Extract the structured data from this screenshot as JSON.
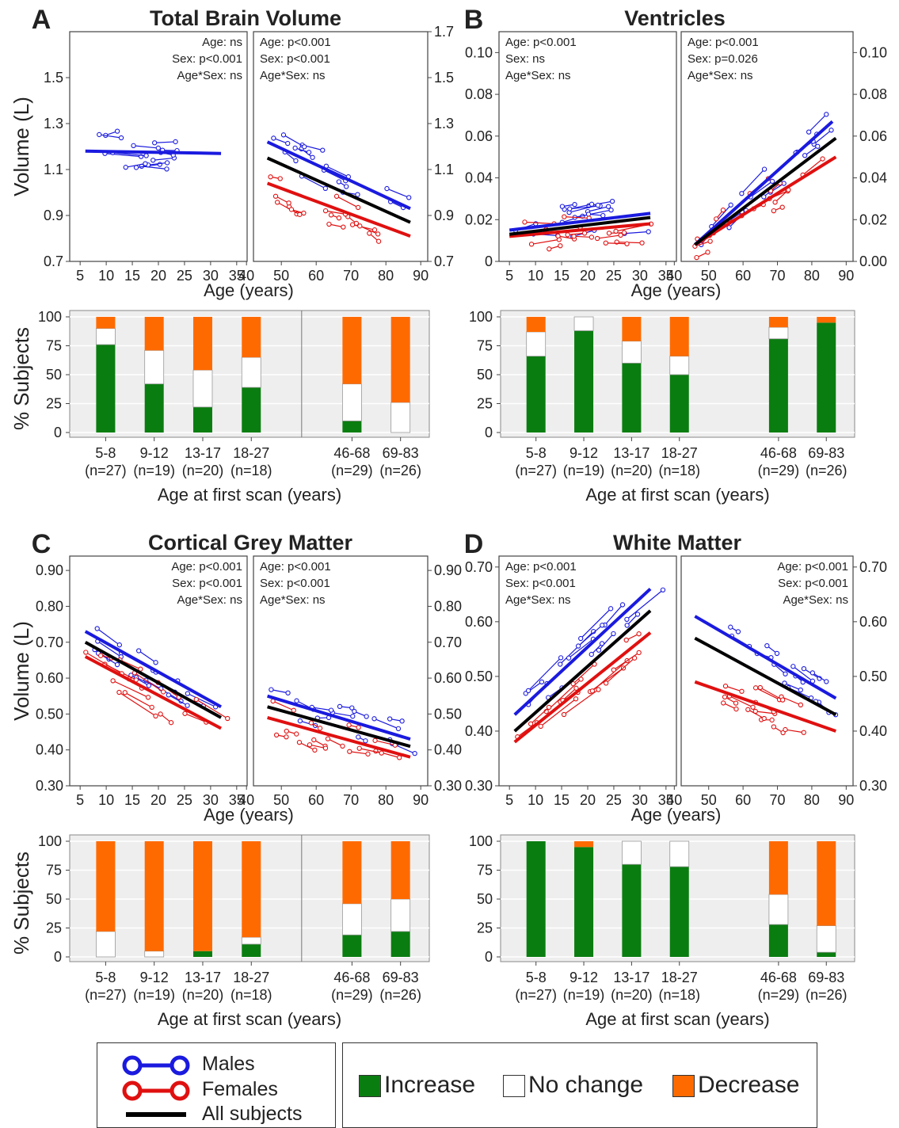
{
  "colors": {
    "male": "#1a1adf",
    "female": "#e01010",
    "all": "#000000",
    "increase": "#0a7d10",
    "nochange": "#ffffff",
    "decrease": "#ff6a00",
    "panel_bg": "#eeeeee"
  },
  "legend_lines": {
    "males": "Males",
    "females": "Females",
    "all": "All subjects"
  },
  "legend_bars": {
    "increase": "Increase",
    "nochange": "No change",
    "decrease": "Decrease"
  },
  "chart_data": [
    {
      "panel": "A",
      "title": "Total Brain Volume",
      "type": "line",
      "ylabel": "Volume (L)",
      "xlabel": "Age (years)",
      "left": {
        "xlim": [
          3,
          37
        ],
        "ylim": [
          0.7,
          1.7
        ],
        "xticks": [
          "5",
          "10",
          "15",
          "20",
          "25",
          "30",
          "35"
        ],
        "yticks": [
          "0.7",
          "0.9",
          "1.1",
          "1.3",
          "1.5"
        ],
        "stats": [
          "Age: ns",
          "Sex: p<0.001",
          "Age*Sex: ns"
        ],
        "stats_align": "right",
        "fits": [
          {
            "series": "Males",
            "x": [
              6,
              32
            ],
            "y": [
              1.18,
              1.17
            ]
          }
        ]
      },
      "right": {
        "xlim": [
          42,
          92
        ],
        "ylim": [
          0.7,
          1.7
        ],
        "xticks": [
          "40",
          "50",
          "60",
          "70",
          "80",
          "90"
        ],
        "yticks": [
          "0.7",
          "0.9",
          "1.1",
          "1.3",
          "1.5",
          "1.7"
        ],
        "stats": [
          "Age: p<0.001",
          "Sex: p<0.001",
          "Age*Sex: ns"
        ],
        "stats_align": "left",
        "fits": [
          {
            "series": "Males",
            "x": [
              46,
              87
            ],
            "y": [
              1.22,
              0.93
            ]
          },
          {
            "series": "Females",
            "x": [
              46,
              87
            ],
            "y": [
              1.04,
              0.81
            ]
          },
          {
            "series": "All subjects",
            "x": [
              46,
              87
            ],
            "y": [
              1.15,
              0.87
            ]
          }
        ]
      },
      "bars": {
        "ylabel": "% Subjects",
        "xlabel": "Age at first scan (years)",
        "groups": [
          [
            "5-8",
            "(n=27)"
          ],
          [
            "9-12",
            "(n=19)"
          ],
          [
            "13-17",
            "(n=20)"
          ],
          [
            "18-27",
            "(n=18)"
          ],
          [
            "46-68",
            "(n=29)"
          ],
          [
            "69-83",
            "(n=26)"
          ]
        ],
        "increase": [
          76,
          42,
          22,
          39,
          10,
          0
        ],
        "nochange": [
          14,
          29,
          32,
          26,
          32,
          26
        ],
        "decrease": [
          10,
          29,
          46,
          35,
          58,
          74
        ]
      }
    },
    {
      "panel": "B",
      "title": "Ventricles",
      "type": "line",
      "ylabel": "",
      "xlabel": "Age (years)",
      "left": {
        "xlim": [
          3,
          37
        ],
        "ylim": [
          0,
          0.11
        ],
        "xticks": [
          "5",
          "10",
          "15",
          "20",
          "25",
          "30",
          "35"
        ],
        "yticks": [
          "0",
          "0.02",
          "0.04",
          "0.06",
          "0.08",
          "0.10"
        ],
        "stats": [
          "Age: p<0.001",
          "Sex: ns",
          "Age*Sex: ns"
        ],
        "stats_align": "left",
        "fits": [
          {
            "series": "Males",
            "x": [
              5,
              32
            ],
            "y": [
              0.015,
              0.023
            ]
          },
          {
            "series": "Females",
            "x": [
              5,
              32
            ],
            "y": [
              0.012,
              0.018
            ]
          },
          {
            "series": "All subjects",
            "x": [
              5,
              32
            ],
            "y": [
              0.013,
              0.021
            ]
          }
        ]
      },
      "right": {
        "xlim": [
          42,
          92
        ],
        "ylim": [
          0,
          0.11
        ],
        "xticks": [
          "40",
          "50",
          "60",
          "70",
          "80",
          "90"
        ],
        "yticks": [
          "0.00",
          "0.02",
          "0.04",
          "0.06",
          "0.08",
          "0.10"
        ],
        "stats": [
          "Age:  p<0.001",
          "Sex: p=0.026",
          "Age*Sex: ns"
        ],
        "stats_align": "left",
        "fits": [
          {
            "series": "Males",
            "x": [
              46,
              86
            ],
            "y": [
              0.008,
              0.067
            ]
          },
          {
            "series": "Females",
            "x": [
              46,
              87
            ],
            "y": [
              0.008,
              0.05
            ]
          },
          {
            "series": "All subjects",
            "x": [
              46,
              87
            ],
            "y": [
              0.008,
              0.059
            ]
          }
        ]
      },
      "bars": {
        "ylabel": "",
        "xlabel": "Age at first scan (years)",
        "groups": [
          [
            "5-8",
            "(n=27)"
          ],
          [
            "9-12",
            "(n=19)"
          ],
          [
            "13-17",
            "(n=20)"
          ],
          [
            "18-27",
            "(n=18)"
          ],
          [
            "46-68",
            "(n=29)"
          ],
          [
            "69-83",
            "(n=26)"
          ]
        ],
        "increase": [
          66,
          88,
          60,
          50,
          81,
          95
        ],
        "nochange": [
          21,
          12,
          19,
          16,
          10,
          0
        ],
        "decrease": [
          13,
          0,
          21,
          34,
          9,
          5
        ]
      }
    },
    {
      "panel": "C",
      "title": "Cortical Grey Matter",
      "type": "line",
      "ylabel": "Volume (L)",
      "xlabel": "Age (years)",
      "left": {
        "xlim": [
          3,
          37
        ],
        "ylim": [
          0.3,
          0.94
        ],
        "xticks": [
          "5",
          "10",
          "15",
          "20",
          "25",
          "30",
          "35"
        ],
        "yticks": [
          "0.30",
          "0.40",
          "0.50",
          "0.60",
          "0.70",
          "0.80",
          "0.90"
        ],
        "stats": [
          "Age: p<0.001",
          "Sex: p<0.001",
          "Age*Sex: ns"
        ],
        "stats_align": "right",
        "fits": [
          {
            "series": "Males",
            "x": [
              6,
              32
            ],
            "y": [
              0.73,
              0.52
            ]
          },
          {
            "series": "Females",
            "x": [
              6,
              32
            ],
            "y": [
              0.66,
              0.46
            ]
          },
          {
            "series": "All subjects",
            "x": [
              6,
              32
            ],
            "y": [
              0.7,
              0.49
            ]
          }
        ]
      },
      "right": {
        "xlim": [
          42,
          92
        ],
        "ylim": [
          0.3,
          0.94
        ],
        "xticks": [
          "40",
          "50",
          "60",
          "70",
          "80",
          "90"
        ],
        "yticks": [
          "0.30",
          "0.40",
          "0.50",
          "0.60",
          "0.70",
          "0.80",
          "0.90"
        ],
        "stats": [
          "Age: p<0.001",
          "Sex: p<0.001",
          "Age*Sex: ns"
        ],
        "stats_align": "left",
        "fits": [
          {
            "series": "Males",
            "x": [
              46,
              87
            ],
            "y": [
              0.55,
              0.43
            ]
          },
          {
            "series": "Females",
            "x": [
              46,
              87
            ],
            "y": [
              0.49,
              0.38
            ]
          },
          {
            "series": "All subjects",
            "x": [
              46,
              87
            ],
            "y": [
              0.52,
              0.41
            ]
          }
        ]
      },
      "bars": {
        "ylabel": "% Subjects",
        "xlabel": "Age at first scan (years)",
        "groups": [
          [
            "5-8",
            "(n=27)"
          ],
          [
            "9-12",
            "(n=19)"
          ],
          [
            "13-17",
            "(n=20)"
          ],
          [
            "18-27",
            "(n=18)"
          ],
          [
            "46-68",
            "(n=29)"
          ],
          [
            "69-83",
            "(n=26)"
          ]
        ],
        "increase": [
          0,
          0,
          5,
          11,
          19,
          22
        ],
        "nochange": [
          22,
          5,
          0,
          6,
          27,
          28
        ],
        "decrease": [
          78,
          95,
          95,
          83,
          54,
          50
        ]
      }
    },
    {
      "panel": "D",
      "title": "White Matter",
      "type": "line",
      "ylabel": "",
      "xlabel": "Age (years)",
      "left": {
        "xlim": [
          3,
          37
        ],
        "ylim": [
          0.3,
          0.72
        ],
        "xticks": [
          "5",
          "10",
          "15",
          "20",
          "25",
          "30",
          "35"
        ],
        "yticks": [
          "0.30",
          "0.40",
          "0.50",
          "0.60",
          "0.70"
        ],
        "stats": [
          "Age: p<0.001",
          "Sex: p<0.001",
          "Age*Sex: ns"
        ],
        "stats_align": "left",
        "fits": [
          {
            "series": "Males",
            "x": [
              6,
              32
            ],
            "y": [
              0.43,
              0.66
            ]
          },
          {
            "series": "Females",
            "x": [
              6,
              32
            ],
            "y": [
              0.38,
              0.58
            ]
          },
          {
            "series": "All subjects",
            "x": [
              6,
              32
            ],
            "y": [
              0.4,
              0.62
            ]
          }
        ]
      },
      "right": {
        "xlim": [
          42,
          92
        ],
        "ylim": [
          0.3,
          0.72
        ],
        "xticks": [
          "40",
          "50",
          "60",
          "70",
          "80",
          "90"
        ],
        "yticks": [
          "0.30",
          "0.40",
          "0.50",
          "0.60",
          "0.70"
        ],
        "stats": [
          "Age: p<0.001",
          "Sex: p<0.001",
          "Age*Sex: ns"
        ],
        "stats_align": "right",
        "fits": [
          {
            "series": "Males",
            "x": [
              46,
              87
            ],
            "y": [
              0.61,
              0.46
            ]
          },
          {
            "series": "Females",
            "x": [
              46,
              87
            ],
            "y": [
              0.49,
              0.4
            ]
          },
          {
            "series": "All subjects",
            "x": [
              46,
              87
            ],
            "y": [
              0.57,
              0.43
            ]
          }
        ]
      },
      "bars": {
        "ylabel": "",
        "xlabel": "Age at first scan (years)",
        "groups": [
          [
            "5-8",
            "(n=27)"
          ],
          [
            "9-12",
            "(n=19)"
          ],
          [
            "13-17",
            "(n=20)"
          ],
          [
            "18-27",
            "(n=18)"
          ],
          [
            "46-68",
            "(n=29)"
          ],
          [
            "69-83",
            "(n=26)"
          ]
        ],
        "increase": [
          100,
          95,
          80,
          78,
          28,
          4
        ],
        "nochange": [
          0,
          0,
          20,
          22,
          26,
          23
        ],
        "decrease": [
          0,
          5,
          0,
          0,
          46,
          73
        ]
      }
    }
  ]
}
